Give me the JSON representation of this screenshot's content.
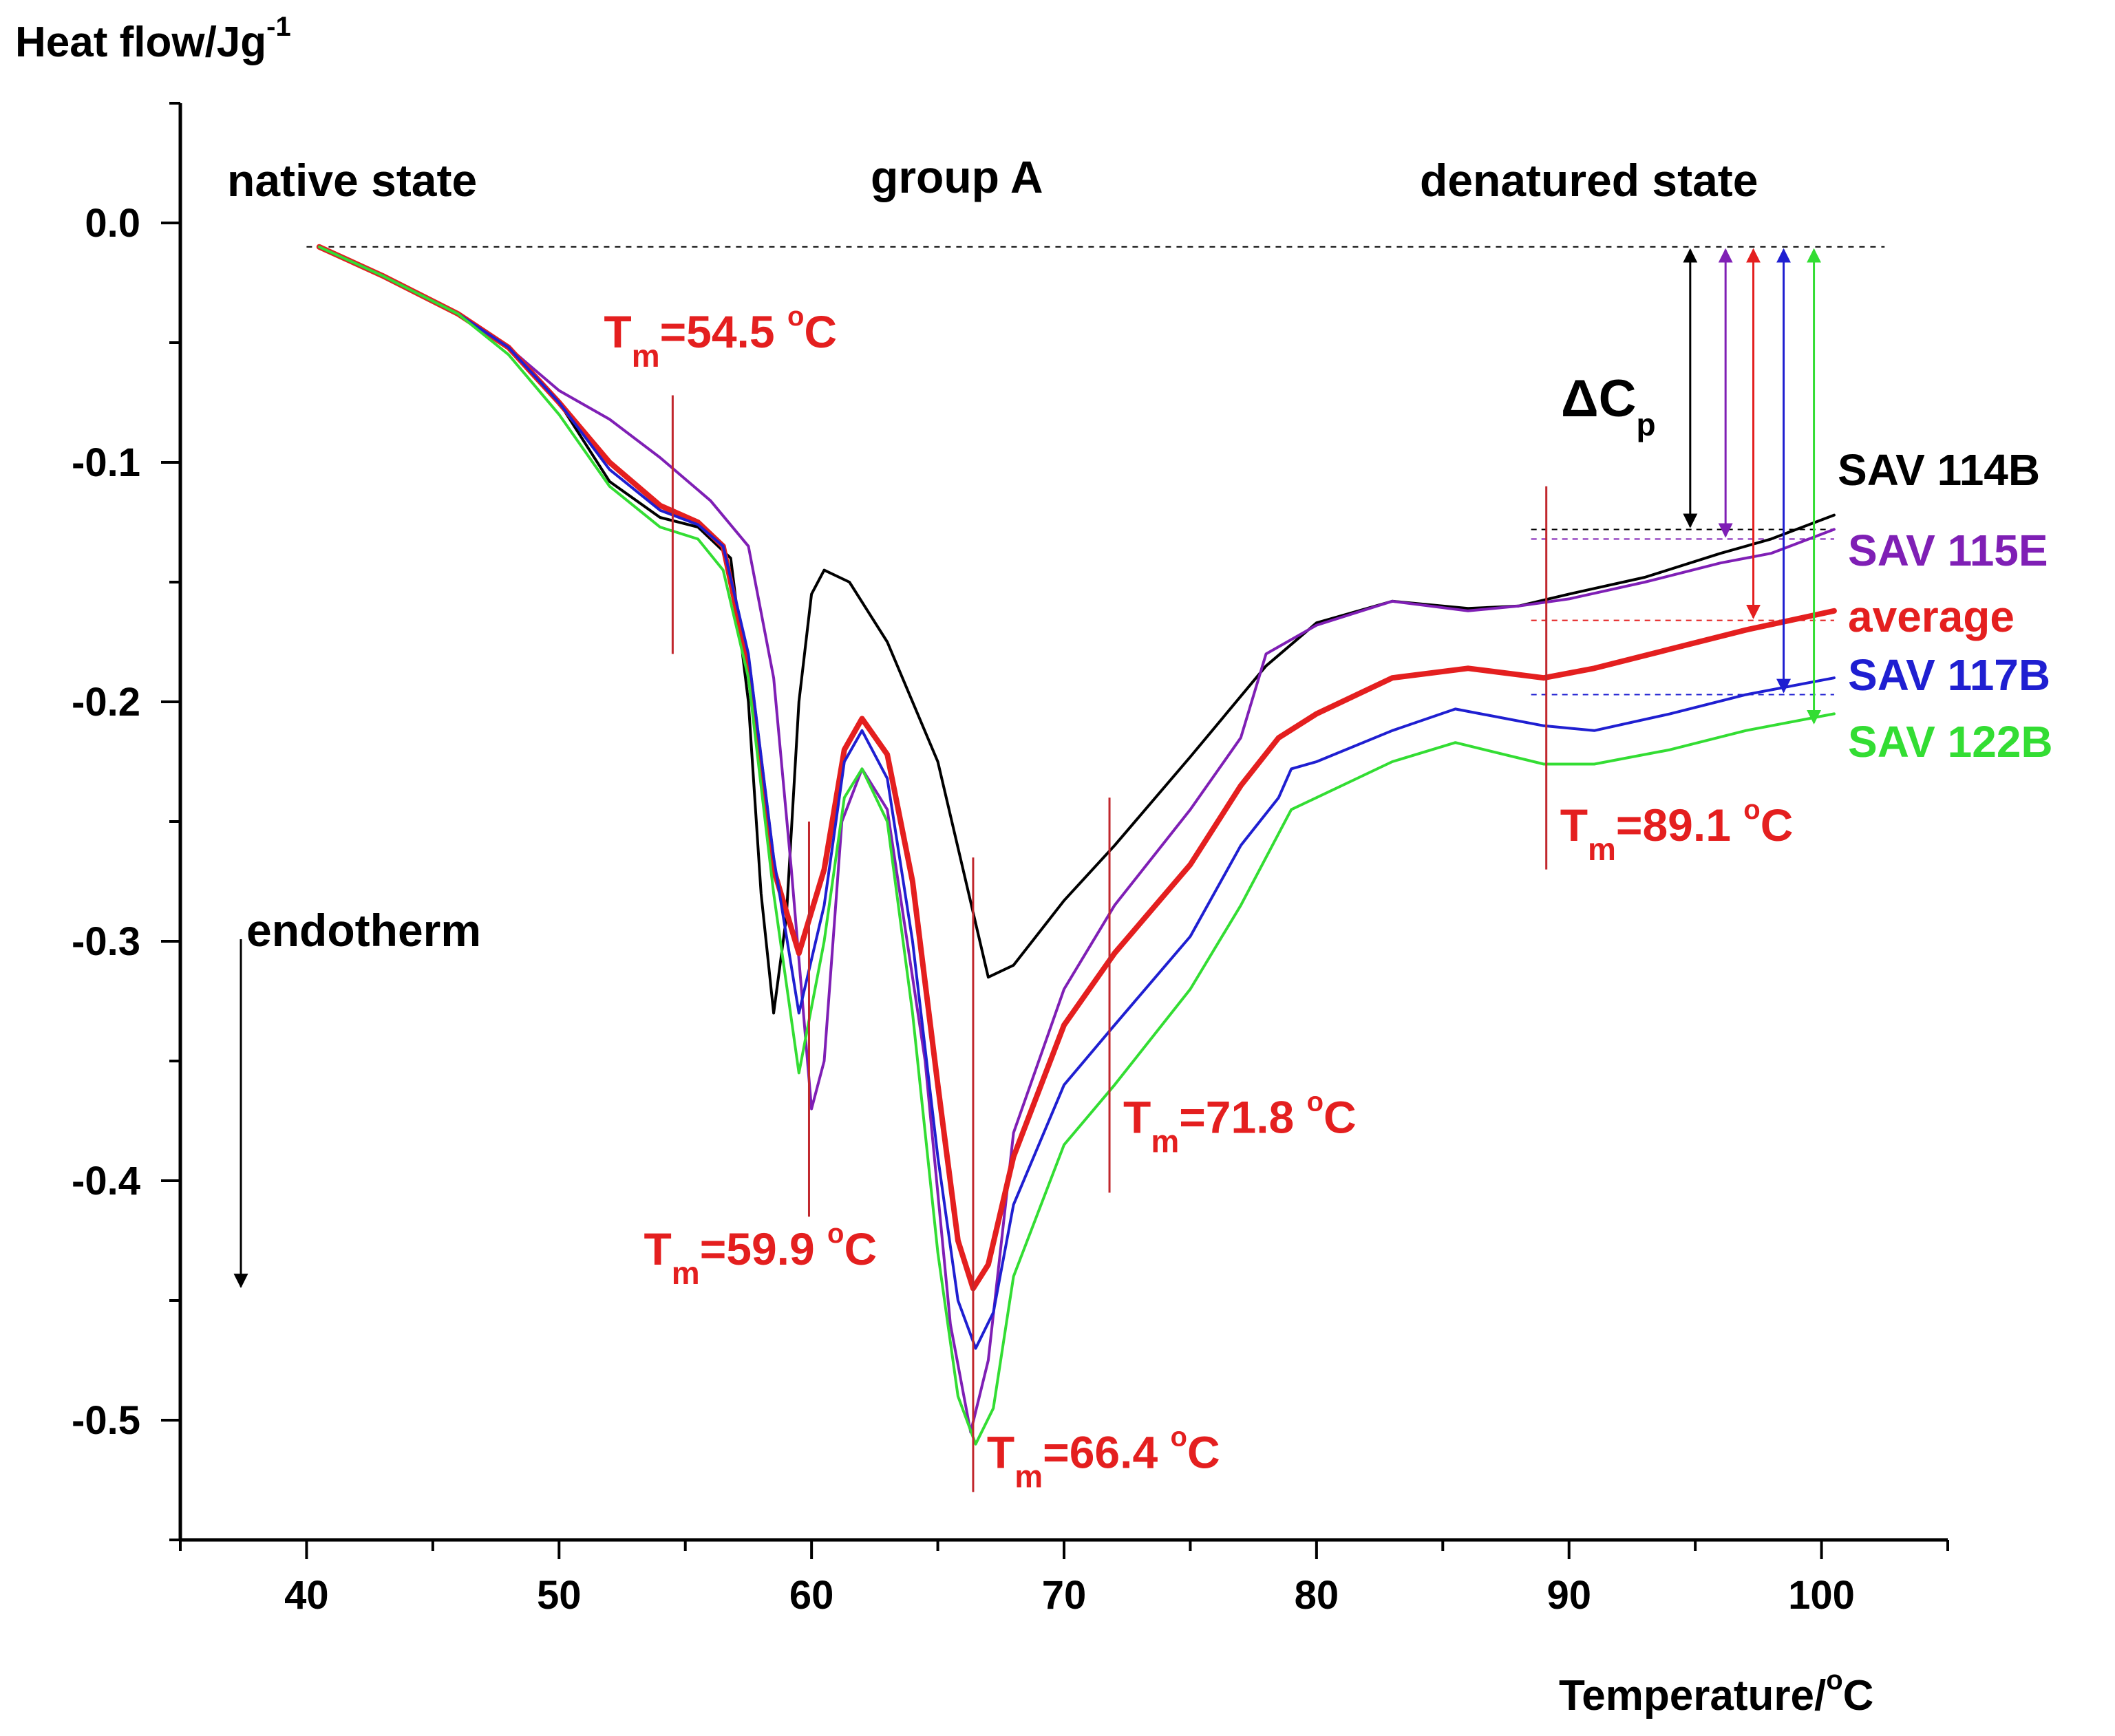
{
  "chart_data": {
    "type": "line",
    "title": "",
    "xlabel": "Temperature/",
    "xlabel_unit": "C",
    "xlabel_degree": "o",
    "ylabel": "Heat flow/Jg",
    "ylabel_exp": "-1",
    "xlim": [
      35,
      105
    ],
    "ylim": [
      -0.55,
      0.05
    ],
    "x_ticks": [
      40,
      50,
      60,
      70,
      80,
      90,
      100
    ],
    "y_ticks": [
      0.0,
      -0.1,
      -0.2,
      -0.3,
      -0.4,
      -0.5
    ],
    "y_tick_labels": [
      "0.0",
      "-0.1",
      "-0.2",
      "-0.3",
      "-0.4",
      "-0.5"
    ],
    "baseline_value": -0.01,
    "region_labels": {
      "native": "native state",
      "group": "group A",
      "denatured": "denatured state",
      "endotherm": "endotherm"
    },
    "delta_cp": {
      "symbol": "ΔC",
      "sub": "p"
    },
    "series": [
      {
        "name": "SAV 114B",
        "color": "#000000",
        "points": [
          [
            40.5,
            -0.01
          ],
          [
            43,
            -0.022
          ],
          [
            46,
            -0.038
          ],
          [
            48,
            -0.052
          ],
          [
            50,
            -0.075
          ],
          [
            52,
            -0.108
          ],
          [
            54,
            -0.123
          ],
          [
            55.5,
            -0.127
          ],
          [
            56.8,
            -0.14
          ],
          [
            57.5,
            -0.2
          ],
          [
            58,
            -0.28
          ],
          [
            58.5,
            -0.33
          ],
          [
            59,
            -0.29
          ],
          [
            59.5,
            -0.2
          ],
          [
            60,
            -0.155
          ],
          [
            60.5,
            -0.145
          ],
          [
            61.5,
            -0.15
          ],
          [
            63,
            -0.175
          ],
          [
            65,
            -0.225
          ],
          [
            66,
            -0.27
          ],
          [
            67,
            -0.315
          ],
          [
            68,
            -0.31
          ],
          [
            70,
            -0.283
          ],
          [
            72,
            -0.26
          ],
          [
            75,
            -0.223
          ],
          [
            78,
            -0.185
          ],
          [
            80,
            -0.167
          ],
          [
            83,
            -0.158
          ],
          [
            86,
            -0.161
          ],
          [
            88,
            -0.16
          ],
          [
            90,
            -0.155
          ],
          [
            93,
            -0.148
          ],
          [
            96,
            -0.138
          ],
          [
            98,
            -0.132
          ],
          [
            100.5,
            -0.122
          ]
        ]
      },
      {
        "name": "SAV 115E",
        "color": "#7f1fb5",
        "points": [
          [
            40.5,
            -0.01
          ],
          [
            43,
            -0.022
          ],
          [
            46,
            -0.038
          ],
          [
            48,
            -0.052
          ],
          [
            50,
            -0.07
          ],
          [
            52,
            -0.082
          ],
          [
            54,
            -0.098
          ],
          [
            56,
            -0.116
          ],
          [
            57.5,
            -0.135
          ],
          [
            58.5,
            -0.19
          ],
          [
            59.2,
            -0.27
          ],
          [
            60,
            -0.37
          ],
          [
            60.5,
            -0.35
          ],
          [
            61.2,
            -0.25
          ],
          [
            62,
            -0.228
          ],
          [
            63,
            -0.245
          ],
          [
            64.5,
            -0.35
          ],
          [
            65.5,
            -0.46
          ],
          [
            66.3,
            -0.505
          ],
          [
            67,
            -0.475
          ],
          [
            68,
            -0.38
          ],
          [
            70,
            -0.32
          ],
          [
            72,
            -0.285
          ],
          [
            75,
            -0.245
          ],
          [
            77,
            -0.215
          ],
          [
            78,
            -0.18
          ],
          [
            80,
            -0.168
          ],
          [
            83,
            -0.158
          ],
          [
            86,
            -0.162
          ],
          [
            88,
            -0.16
          ],
          [
            90,
            -0.157
          ],
          [
            93,
            -0.15
          ],
          [
            96,
            -0.142
          ],
          [
            98,
            -0.138
          ],
          [
            100.5,
            -0.128
          ]
        ]
      },
      {
        "name": "average",
        "color": "#e41f1f",
        "points": [
          [
            40.5,
            -0.01
          ],
          [
            43,
            -0.022
          ],
          [
            46,
            -0.038
          ],
          [
            48,
            -0.052
          ],
          [
            50,
            -0.075
          ],
          [
            52,
            -0.1
          ],
          [
            54,
            -0.118
          ],
          [
            55.5,
            -0.125
          ],
          [
            56.5,
            -0.135
          ],
          [
            57.5,
            -0.185
          ],
          [
            58.5,
            -0.27
          ],
          [
            59.5,
            -0.305
          ],
          [
            60.5,
            -0.27
          ],
          [
            61.3,
            -0.22
          ],
          [
            62,
            -0.207
          ],
          [
            63,
            -0.222
          ],
          [
            64,
            -0.275
          ],
          [
            65,
            -0.36
          ],
          [
            65.8,
            -0.425
          ],
          [
            66.4,
            -0.445
          ],
          [
            67,
            -0.435
          ],
          [
            68,
            -0.39
          ],
          [
            70,
            -0.335
          ],
          [
            72,
            -0.305
          ],
          [
            75,
            -0.268
          ],
          [
            77,
            -0.235
          ],
          [
            78.5,
            -0.215
          ],
          [
            80,
            -0.205
          ],
          [
            83,
            -0.19
          ],
          [
            86,
            -0.186
          ],
          [
            89,
            -0.19
          ],
          [
            91,
            -0.186
          ],
          [
            94,
            -0.178
          ],
          [
            97,
            -0.17
          ],
          [
            100.5,
            -0.162
          ]
        ]
      },
      {
        "name": "SAV 117B",
        "color": "#1f1fd1",
        "points": [
          [
            40.5,
            -0.01
          ],
          [
            43,
            -0.022
          ],
          [
            46,
            -0.038
          ],
          [
            48,
            -0.052
          ],
          [
            50,
            -0.075
          ],
          [
            52,
            -0.103
          ],
          [
            54,
            -0.12
          ],
          [
            55.5,
            -0.126
          ],
          [
            56.5,
            -0.135
          ],
          [
            57.5,
            -0.18
          ],
          [
            58.5,
            -0.265
          ],
          [
            59.5,
            -0.33
          ],
          [
            60.5,
            -0.285
          ],
          [
            61.3,
            -0.225
          ],
          [
            62,
            -0.212
          ],
          [
            63,
            -0.232
          ],
          [
            64,
            -0.3
          ],
          [
            65,
            -0.39
          ],
          [
            65.8,
            -0.45
          ],
          [
            66.5,
            -0.47
          ],
          [
            67.2,
            -0.455
          ],
          [
            68,
            -0.41
          ],
          [
            70,
            -0.36
          ],
          [
            72,
            -0.335
          ],
          [
            75,
            -0.298
          ],
          [
            77,
            -0.26
          ],
          [
            78.5,
            -0.24
          ],
          [
            79,
            -0.228
          ],
          [
            80,
            -0.225
          ],
          [
            83,
            -0.212
          ],
          [
            85.5,
            -0.203
          ],
          [
            89,
            -0.21
          ],
          [
            91,
            -0.212
          ],
          [
            94,
            -0.205
          ],
          [
            97,
            -0.197
          ],
          [
            100.5,
            -0.19
          ]
        ]
      },
      {
        "name": "SAV 122B",
        "color": "#33dd33",
        "points": [
          [
            40.5,
            -0.01
          ],
          [
            43,
            -0.022
          ],
          [
            46,
            -0.038
          ],
          [
            48,
            -0.055
          ],
          [
            50,
            -0.08
          ],
          [
            52,
            -0.11
          ],
          [
            54,
            -0.127
          ],
          [
            55.5,
            -0.132
          ],
          [
            56.5,
            -0.145
          ],
          [
            57.5,
            -0.19
          ],
          [
            58.5,
            -0.28
          ],
          [
            59.5,
            -0.355
          ],
          [
            60.5,
            -0.3
          ],
          [
            61.3,
            -0.24
          ],
          [
            62,
            -0.228
          ],
          [
            63,
            -0.25
          ],
          [
            64,
            -0.33
          ],
          [
            65,
            -0.43
          ],
          [
            65.8,
            -0.49
          ],
          [
            66.5,
            -0.51
          ],
          [
            67.2,
            -0.495
          ],
          [
            68,
            -0.44
          ],
          [
            70,
            -0.385
          ],
          [
            72,
            -0.36
          ],
          [
            75,
            -0.32
          ],
          [
            77,
            -0.285
          ],
          [
            78.5,
            -0.255
          ],
          [
            79,
            -0.245
          ],
          [
            80,
            -0.24
          ],
          [
            83,
            -0.225
          ],
          [
            85.5,
            -0.217
          ],
          [
            89,
            -0.226
          ],
          [
            91,
            -0.226
          ],
          [
            94,
            -0.22
          ],
          [
            97,
            -0.212
          ],
          [
            100.5,
            -0.205
          ]
        ]
      }
    ],
    "tm_markers": [
      {
        "label_t": "T",
        "label_sub": "m",
        "value_text": "=54.5 ",
        "deg": "o",
        "unit": "C",
        "x": 54.5,
        "y_top": -0.072,
        "y_bottom": -0.18
      },
      {
        "label_t": "T",
        "label_sub": "m",
        "value_text": "=59.9 ",
        "deg": "o",
        "unit": "C",
        "x": 59.9,
        "y_top": -0.25,
        "y_bottom": -0.415
      },
      {
        "label_t": "T",
        "label_sub": "m",
        "value_text": "=66.4 ",
        "deg": "o",
        "unit": "C",
        "x": 66.4,
        "y_top": -0.265,
        "y_bottom": -0.53
      },
      {
        "label_t": "T",
        "label_sub": "m",
        "value_text": "=71.8 ",
        "deg": "o",
        "unit": "C",
        "x": 71.8,
        "y_top": -0.24,
        "y_bottom": -0.405
      },
      {
        "label_t": "T",
        "label_sub": "m",
        "value_text": "=89.1 ",
        "deg": "o",
        "unit": "C",
        "x": 89.1,
        "y_top": -0.11,
        "y_bottom": -0.27
      }
    ],
    "delta_arrows": [
      {
        "series": "SAV 114B",
        "color": "#000000",
        "x": 94.8,
        "y_top": -0.01,
        "y_bottom": -0.128
      },
      {
        "series": "SAV 115E",
        "color": "#7f1fb5",
        "x": 96.2,
        "y_top": -0.01,
        "y_bottom": -0.132
      },
      {
        "series": "average",
        "color": "#e41f1f",
        "x": 97.3,
        "y_top": -0.01,
        "y_bottom": -0.166
      },
      {
        "series": "SAV 117B",
        "color": "#1f1fd1",
        "x": 98.5,
        "y_top": -0.01,
        "y_bottom": -0.197
      },
      {
        "series": "SAV 122B",
        "color": "#33dd33",
        "x": 99.7,
        "y_top": -0.01,
        "y_bottom": -0.21
      }
    ],
    "plateau_lines": [
      {
        "color": "#000000",
        "y": -0.128
      },
      {
        "color": "#7f1fb5",
        "y": -0.132
      },
      {
        "color": "#e41f1f",
        "y": -0.166
      },
      {
        "color": "#1f1fd1",
        "y": -0.197
      }
    ],
    "plateau_range": [
      88.5,
      100.5
    ],
    "legend": [
      {
        "prefix": "SAV ",
        "rest": "114B",
        "color": "#000000",
        "prefix_color": "#000000"
      },
      {
        "prefix": "SAV ",
        "rest": "115E",
        "color": "#7f1fb5",
        "prefix_color": "#7f1fb5"
      },
      {
        "prefix": "",
        "rest": "average",
        "color": "#e41f1f",
        "prefix_color": "#e41f1f"
      },
      {
        "prefix": "SAV ",
        "rest": "117B",
        "color": "#1f1fd1",
        "prefix_color": "#1f1fd1"
      },
      {
        "prefix": "SAV ",
        "rest": "122B",
        "color": "#33dd33",
        "prefix_color": "#33dd33"
      }
    ]
  }
}
